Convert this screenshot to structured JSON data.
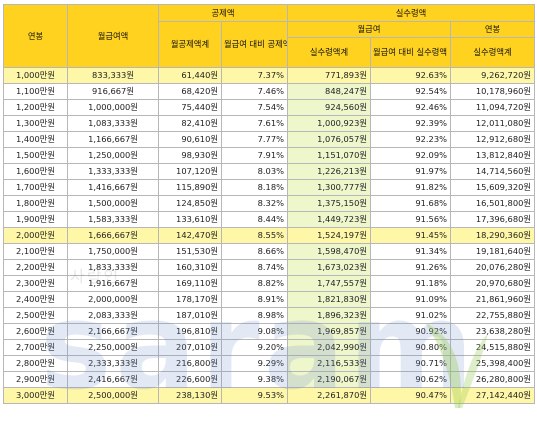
{
  "headers": {
    "annual_salary": "연봉",
    "monthly_salary": "월급여액",
    "deductions": "공제액",
    "deduction_total": "월공제액계",
    "deduction_ratio": "월급여 대비 공제액 비율",
    "take_home": "실수령액",
    "monthly_group": "월급여",
    "annual_group": "연봉",
    "take_home_total": "실수령액계",
    "take_home_ratio": "월급여 대비 실수령액 비율",
    "annual_take_home": "실수령액계"
  },
  "rows": [
    {
      "salary": "1,000만원",
      "monthly": "833,333원",
      "deduct": "61,440원",
      "dratio": "7.37%",
      "net": "771,893원",
      "nratio": "92.63%",
      "annual": "9,262,720원"
    },
    {
      "salary": "1,100만원",
      "monthly": "916,667원",
      "deduct": "68,420원",
      "dratio": "7.46%",
      "net": "848,247원",
      "nratio": "92.54%",
      "annual": "10,178,960원"
    },
    {
      "salary": "1,200만원",
      "monthly": "1,000,000원",
      "deduct": "75,440원",
      "dratio": "7.54%",
      "net": "924,560원",
      "nratio": "92.46%",
      "annual": "11,094,720원"
    },
    {
      "salary": "1,300만원",
      "monthly": "1,083,333원",
      "deduct": "82,410원",
      "dratio": "7.61%",
      "net": "1,000,923원",
      "nratio": "92.39%",
      "annual": "12,011,080원"
    },
    {
      "salary": "1,400만원",
      "monthly": "1,166,667원",
      "deduct": "90,610원",
      "dratio": "7.77%",
      "net": "1,076,057원",
      "nratio": "92.23%",
      "annual": "12,912,680원"
    },
    {
      "salary": "1,500만원",
      "monthly": "1,250,000원",
      "deduct": "98,930원",
      "dratio": "7.91%",
      "net": "1,151,070원",
      "nratio": "92.09%",
      "annual": "13,812,840원"
    },
    {
      "salary": "1,600만원",
      "monthly": "1,333,333원",
      "deduct": "107,120원",
      "dratio": "8.03%",
      "net": "1,226,213원",
      "nratio": "91.97%",
      "annual": "14,714,560원"
    },
    {
      "salary": "1,700만원",
      "monthly": "1,416,667원",
      "deduct": "115,890원",
      "dratio": "8.18%",
      "net": "1,300,777원",
      "nratio": "91.82%",
      "annual": "15,609,320원"
    },
    {
      "salary": "1,800만원",
      "monthly": "1,500,000원",
      "deduct": "124,850원",
      "dratio": "8.32%",
      "net": "1,375,150원",
      "nratio": "91.68%",
      "annual": "16,501,800원"
    },
    {
      "salary": "1,900만원",
      "monthly": "1,583,333원",
      "deduct": "133,610원",
      "dratio": "8.44%",
      "net": "1,449,723원",
      "nratio": "91.56%",
      "annual": "17,396,680원"
    },
    {
      "salary": "2,000만원",
      "monthly": "1,666,667원",
      "deduct": "142,470원",
      "dratio": "8.55%",
      "net": "1,524,197원",
      "nratio": "91.45%",
      "annual": "18,290,360원"
    },
    {
      "salary": "2,100만원",
      "monthly": "1,750,000원",
      "deduct": "151,530원",
      "dratio": "8.66%",
      "net": "1,598,470원",
      "nratio": "91.34%",
      "annual": "19,181,640원"
    },
    {
      "salary": "2,200만원",
      "monthly": "1,833,333원",
      "deduct": "160,310원",
      "dratio": "8.74%",
      "net": "1,673,023원",
      "nratio": "91.26%",
      "annual": "20,076,280원"
    },
    {
      "salary": "2,300만원",
      "monthly": "1,916,667원",
      "deduct": "169,110원",
      "dratio": "8.82%",
      "net": "1,747,557원",
      "nratio": "91.18%",
      "annual": "20,970,680원"
    },
    {
      "salary": "2,400만원",
      "monthly": "2,000,000원",
      "deduct": "178,170원",
      "dratio": "8.91%",
      "net": "1,821,830원",
      "nratio": "91.09%",
      "annual": "21,861,960원"
    },
    {
      "salary": "2,500만원",
      "monthly": "2,083,333원",
      "deduct": "187,010원",
      "dratio": "8.98%",
      "net": "1,896,323원",
      "nratio": "91.02%",
      "annual": "22,755,880원"
    },
    {
      "salary": "2,600만원",
      "monthly": "2,166,667원",
      "deduct": "196,810원",
      "dratio": "9.08%",
      "net": "1,969,857원",
      "nratio": "90.92%",
      "annual": "23,638,280원"
    },
    {
      "salary": "2,700만원",
      "monthly": "2,250,000원",
      "deduct": "207,010원",
      "dratio": "9.20%",
      "net": "2,042,990원",
      "nratio": "90.80%",
      "annual": "24,515,880원"
    },
    {
      "salary": "2,800만원",
      "monthly": "2,333,333원",
      "deduct": "216,800원",
      "dratio": "9.29%",
      "net": "2,116,533원",
      "nratio": "90.71%",
      "annual": "25,398,400원"
    },
    {
      "salary": "2,900만원",
      "monthly": "2,416,667원",
      "deduct": "226,600원",
      "dratio": "9.38%",
      "net": "2,190,067원",
      "nratio": "90.62%",
      "annual": "26,280,800원"
    },
    {
      "salary": "3,000만원",
      "monthly": "2,500,000원",
      "deduct": "238,130원",
      "dratio": "9.53%",
      "net": "2,261,870원",
      "nratio": "90.47%",
      "annual": "27,142,440원"
    }
  ],
  "highlight_rows": [
    0,
    10,
    20
  ],
  "watermark": {
    "text": "saram",
    "small_text": "사람인"
  },
  "colors": {
    "header_bg": "#ffd21f",
    "highlight_bg": "#fff7a8",
    "net_column_bg": "#eef6cc",
    "border": "#b7b7b7"
  }
}
